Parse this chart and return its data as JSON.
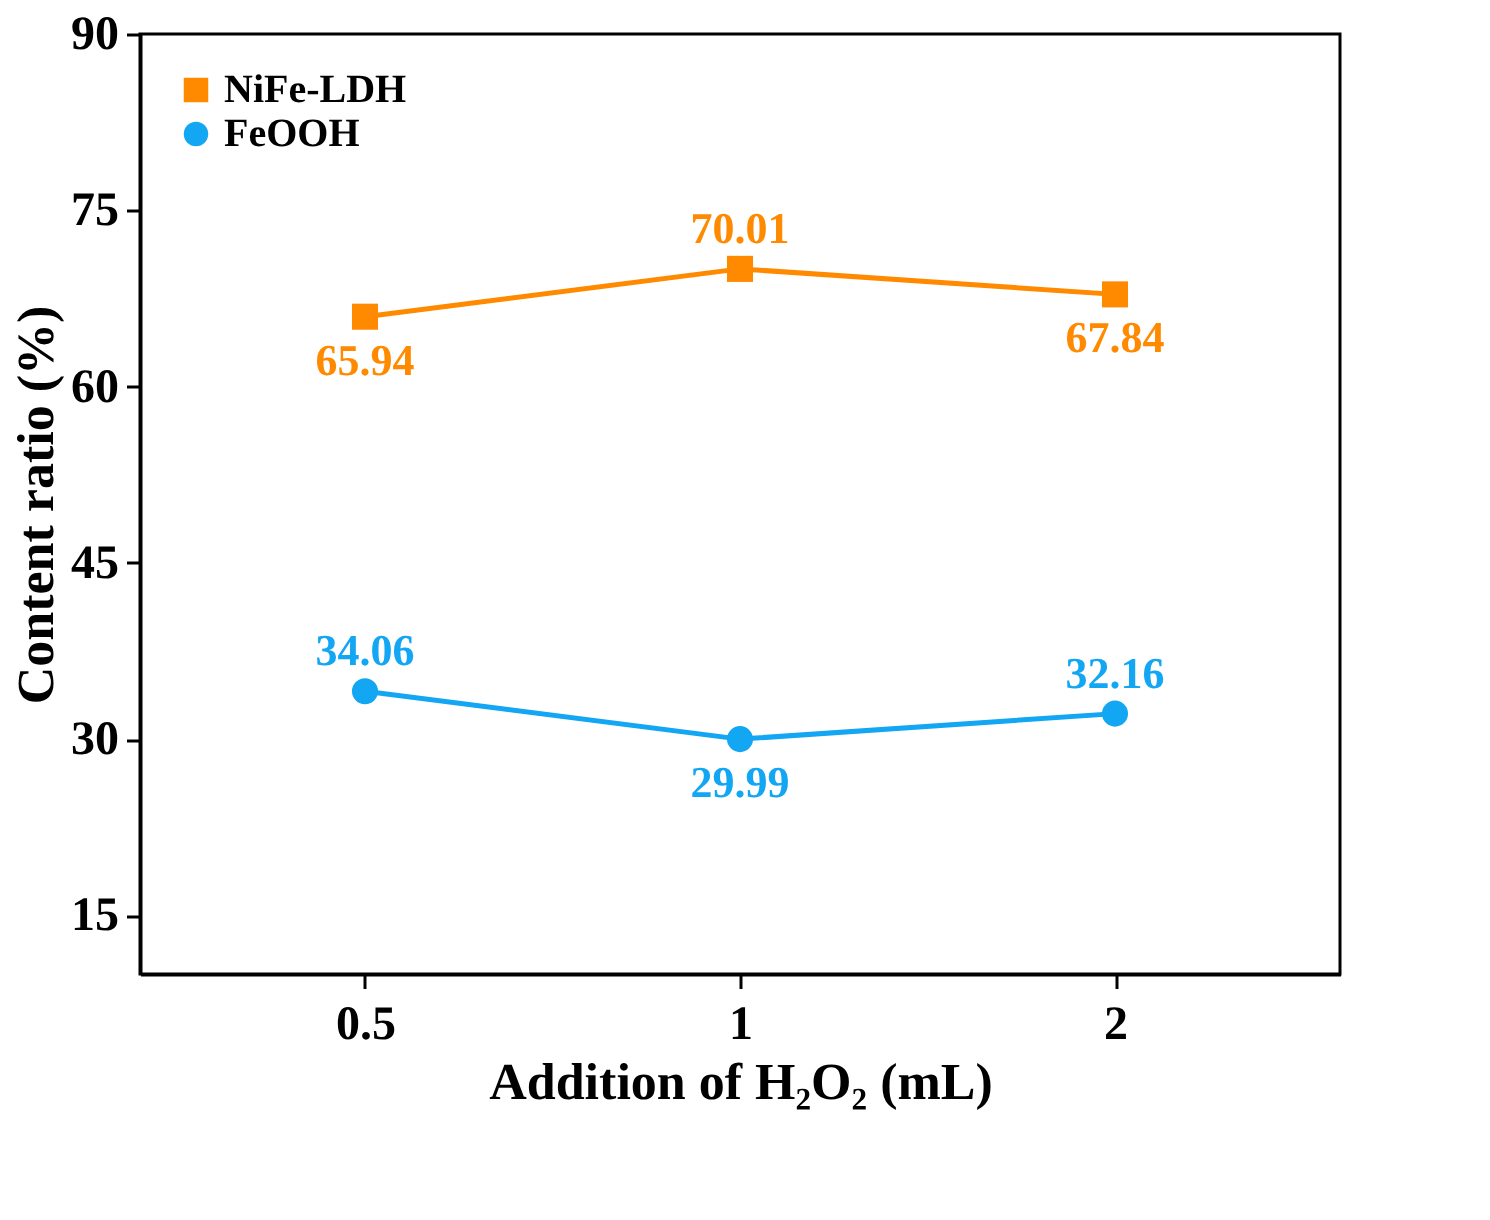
{
  "chart_data": {
    "type": "line",
    "xlabel": "Addition of H₂O₂ (mL)",
    "ylabel": "Content ratio (%)",
    "categories": [
      "0.5",
      "1",
      "2"
    ],
    "series": [
      {
        "name": "NiFe-LDH",
        "color": "#ff8a00",
        "marker": "square",
        "values": [
          65.94,
          70.01,
          67.84
        ]
      },
      {
        "name": "FeOOH",
        "color": "#13a6f2",
        "marker": "circle",
        "values": [
          34.06,
          29.99,
          32.16
        ]
      }
    ],
    "ylim": [
      10,
      90
    ],
    "yticks": [
      15,
      30,
      45,
      60,
      75,
      90
    ],
    "data_labels": true,
    "legend": "top left",
    "grid": false
  }
}
